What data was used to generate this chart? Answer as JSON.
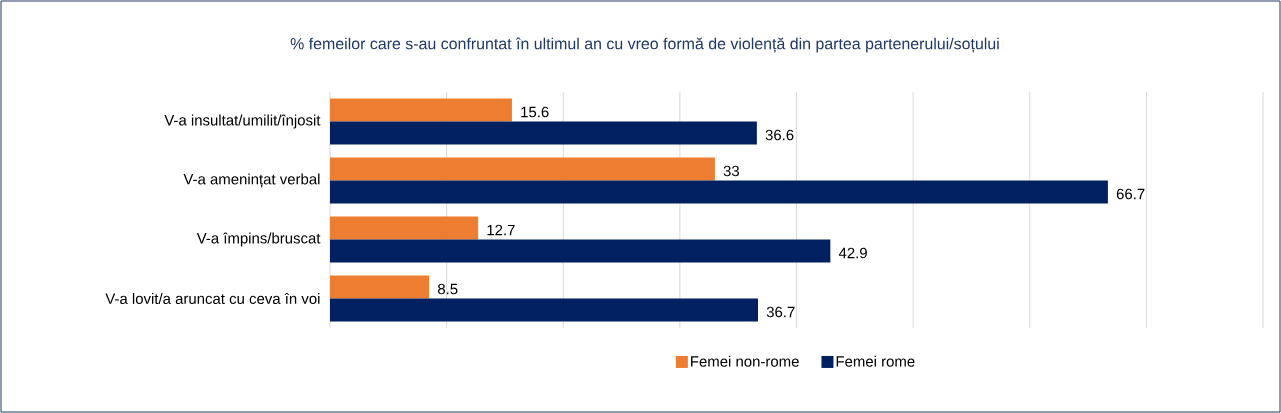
{
  "chart_data": {
    "type": "bar",
    "orientation": "horizontal",
    "title": "% femeilor care s-au confruntat în ultimul an cu vreo formă de violență din partea partenerului/soțului",
    "categories": [
      "V-a insultat/umilit/înjosit",
      "V-a amenințat verbal",
      "V-a împins/bruscat",
      "V-a lovit/a aruncat cu ceva în voi"
    ],
    "series": [
      {
        "name": "Femei non-rome",
        "color": "#ed7d31",
        "values": [
          15.6,
          33,
          12.7,
          8.5
        ]
      },
      {
        "name": "Femei rome",
        "color": "#002060",
        "values": [
          36.6,
          66.7,
          42.9,
          36.7
        ]
      }
    ],
    "xlim": [
      0,
      80
    ],
    "xticks": [
      {
        "value": 0,
        "label": null
      },
      {
        "value": 10,
        "label": null
      },
      {
        "value": 20,
        "label": null
      },
      {
        "value": 30,
        "label": null
      },
      {
        "value": 40,
        "label": null
      },
      {
        "value": 50,
        "label": null
      },
      {
        "value": 60,
        "label": null
      },
      {
        "value": 70,
        "label": null
      },
      {
        "value": 80,
        "label": null
      }
    ],
    "grid": "x",
    "legend": "bottom",
    "tick_labels": "y",
    "data_labels": true
  }
}
